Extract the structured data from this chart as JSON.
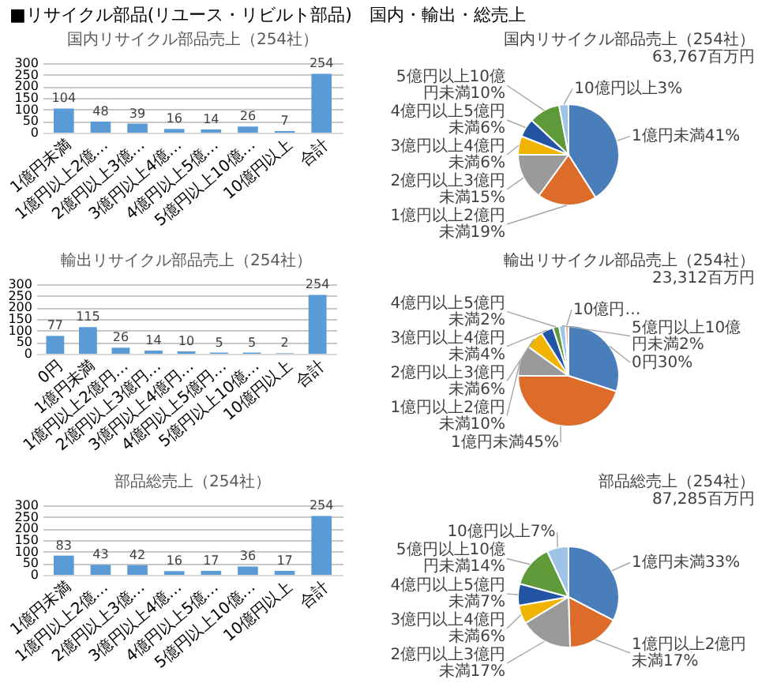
{
  "chart_data": [
    {
      "type": "bar",
      "title": "国内リサイクル部品売上（254社）",
      "annotations": [
        "■リサイクル部品(リユース・リビルト部品)　国内・輸出・総売上"
      ],
      "categories": [
        "1億円未満",
        "1億円以上2億…",
        "2億円以上3億…",
        "3億円以上4億…",
        "4億円以上5億…",
        "5億円以上10億…",
        "10億円以上",
        "合計"
      ],
      "values": [
        104,
        48,
        39,
        16,
        14,
        26,
        7,
        254
      ],
      "color": "#5b9bd5",
      "ylim": [
        0,
        300
      ],
      "yticks": [
        0,
        50,
        100,
        150,
        200,
        250,
        300
      ],
      "grid": "y",
      "data_labels": true
    },
    {
      "type": "pie",
      "title": "国内リサイクル部品売上（254社）",
      "subtitle": "63,767百万円",
      "categories": [
        "1億円未満",
        "1億円以上2億円未満",
        "2億円以上3億円未満",
        "3億円以上4億円未満",
        "4億円以上5億円未満",
        "5億円以上10億円未満",
        "10億円以上"
      ],
      "values": [
        41,
        19,
        15,
        6,
        6,
        10,
        3
      ],
      "value_labels": [
        "41%",
        "19%",
        "15%",
        "6%",
        "6%",
        "10%",
        "3%"
      ],
      "colors": [
        "#4a7ebb",
        "#dd6b2a",
        "#9a9a9a",
        "#f0b400",
        "#2455a4",
        "#5f9a3a",
        "#9dc3e6"
      ]
    },
    {
      "type": "bar",
      "title": "輸出リサイクル部品売上（254社）",
      "categories": [
        "0円",
        "1億円未満",
        "1億円以上2億円…",
        "2億円以上3億円…",
        "3億円以上4億円…",
        "4億円以上5億円…",
        "5億円以上10億…",
        "10億円以上",
        "合計"
      ],
      "values": [
        77,
        115,
        26,
        14,
        10,
        5,
        5,
        2,
        254
      ],
      "color": "#5b9bd5",
      "ylim": [
        0,
        300
      ],
      "yticks": [
        0,
        50,
        100,
        150,
        200,
        250,
        300
      ],
      "grid": "y",
      "data_labels": true
    },
    {
      "type": "pie",
      "title": "輸出リサイクル部品売上（254社）",
      "subtitle": "23,312百万円",
      "categories": [
        "0円",
        "1億円未満",
        "1億円以上2億円未満",
        "2億円以上3億円未満",
        "3億円以上4億円未満",
        "4億円以上5億円未満",
        "5億円以上10億円未満",
        "10億円…"
      ],
      "values": [
        30,
        45,
        10,
        6,
        4,
        2,
        2,
        1
      ],
      "value_labels": [
        "30%",
        "45%",
        "10%",
        "6%",
        "4%",
        "2%",
        "2%",
        null
      ],
      "colors": [
        "#4a7ebb",
        "#dd6b2a",
        "#9a9a9a",
        "#f0b400",
        "#2455a4",
        "#5f9a3a",
        "#9dc3e6",
        "#f4b183"
      ]
    },
    {
      "type": "bar",
      "title": "部品総売上（254社）",
      "categories": [
        "1億円未満",
        "1億円以上2億…",
        "2億円以上3億…",
        "3億円以上4億…",
        "4億円以上5億…",
        "5億円以上10億…",
        "10億円以上",
        "合計"
      ],
      "values": [
        83,
        43,
        42,
        16,
        17,
        36,
        17,
        254
      ],
      "color": "#5b9bd5",
      "ylim": [
        0,
        300
      ],
      "yticks": [
        0,
        50,
        100,
        150,
        200,
        250,
        300
      ],
      "grid": "y",
      "data_labels": true
    },
    {
      "type": "pie",
      "title": "部品総売上（254社）",
      "subtitle": "87,285百万円",
      "categories": [
        "1億円未満",
        "1億円以上2億円未満",
        "2億円以上3億円未満",
        "3億円以上4億円未満",
        "4億円以上5億円未満",
        "5億円以上10億円未満",
        "10億円以上"
      ],
      "values": [
        33,
        17,
        17,
        6,
        7,
        14,
        7
      ],
      "value_labels": [
        "33%",
        "17%",
        "17%",
        "6%",
        "7%",
        "14%",
        "7%"
      ],
      "colors": [
        "#4a7ebb",
        "#dd6b2a",
        "#9a9a9a",
        "#f0b400",
        "#2455a4",
        "#5f9a3a",
        "#9dc3e6"
      ]
    }
  ]
}
